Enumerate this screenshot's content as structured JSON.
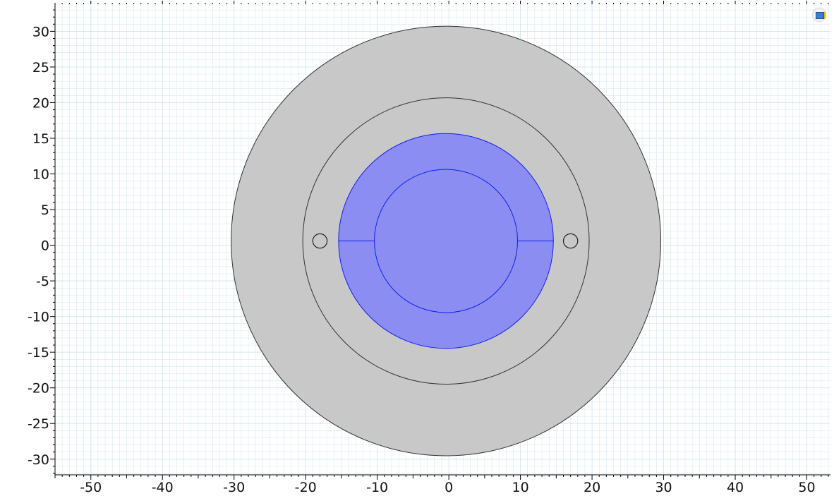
{
  "view": {
    "x_range": [
      -55,
      53.3
    ],
    "y_range": [
      -32.2,
      33.8
    ],
    "x_ticks": [
      -50,
      -40,
      -30,
      -20,
      -10,
      0,
      10,
      20,
      30,
      40,
      50
    ],
    "y_ticks": [
      30,
      25,
      20,
      15,
      10,
      5,
      0,
      -5,
      -10,
      -15,
      -20,
      -25,
      -30
    ],
    "grid": true,
    "icon": "view-toggle-icon"
  },
  "geometry": {
    "center": [
      -0.4,
      0.6
    ],
    "outer_circle_radius": 30,
    "middle_circle_radius": 20,
    "blue_ring_outer_radius": 15,
    "blue_inner_circle_radius": 10,
    "small_circles": [
      {
        "cx": -18,
        "cy": 0.6,
        "r": 1
      },
      {
        "cx": 17,
        "cy": 0.6,
        "r": 1
      }
    ]
  },
  "colors": {
    "background_grid": "#cfe6ee",
    "gray_domain": "#c8c8c8",
    "blue_domain": "#8b8df3",
    "blue_edge": "#0f1ff0",
    "edge": "#333333"
  }
}
